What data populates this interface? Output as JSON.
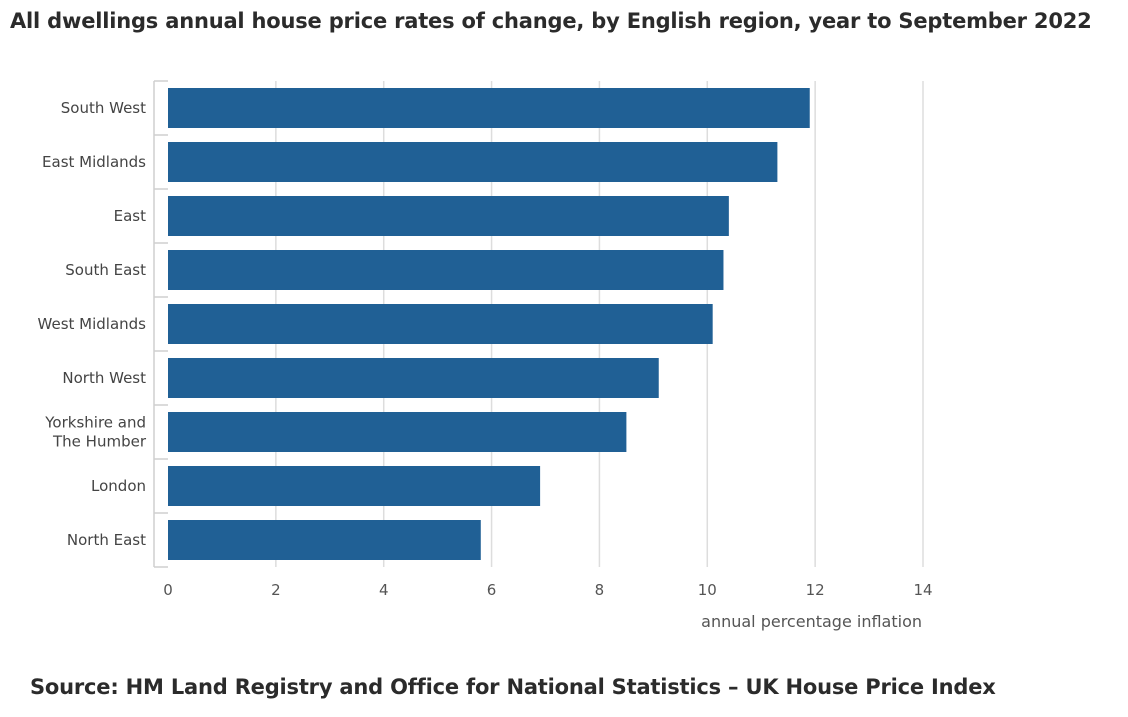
{
  "chart_data": {
    "type": "bar",
    "orientation": "horizontal",
    "title": "All dwellings annual house price rates of change, by English region, year to September 2022",
    "xlabel": "annual percentage inflation",
    "ylabel": "",
    "categories": [
      "South West",
      "East Midlands",
      "East",
      "South East",
      "West Midlands",
      "North West",
      "Yorkshire and The Humber",
      "London",
      "North East"
    ],
    "category_lines": [
      [
        "South West"
      ],
      [
        "East Midlands"
      ],
      [
        "East"
      ],
      [
        "South East"
      ],
      [
        "West Midlands"
      ],
      [
        "North West"
      ],
      [
        "Yorkshire and",
        "The Humber"
      ],
      [
        "London"
      ],
      [
        "North East"
      ]
    ],
    "values": [
      11.9,
      11.3,
      10.4,
      10.3,
      10.1,
      9.1,
      8.5,
      6.9,
      5.8
    ],
    "xlim": [
      0,
      14
    ],
    "xticks": [
      0,
      2,
      4,
      6,
      8,
      10,
      12,
      14
    ],
    "xtick_labels": [
      "0",
      "2",
      "4",
      "6",
      "8",
      "10",
      "12",
      "14"
    ],
    "grid": true,
    "legend": "none",
    "bar_color": "#206095",
    "grid_color": "#dddddd"
  },
  "source": "Source: HM Land Registry and Office for National Statistics – UK House Price Index"
}
